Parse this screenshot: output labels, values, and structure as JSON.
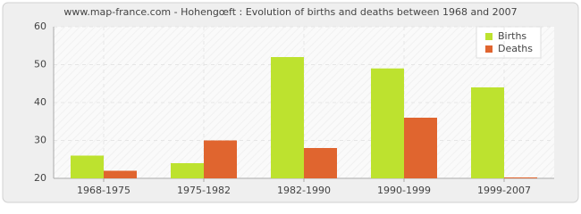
{
  "chart_data": {
    "type": "bar",
    "title": "www.map-france.com - Hohengœft : Evolution of births and deaths between 1968 and 2007",
    "categories": [
      "1968-1975",
      "1975-1982",
      "1982-1990",
      "1990-1999",
      "1999-2007"
    ],
    "series": [
      {
        "name": "Births",
        "color": "#bde22f",
        "values": [
          26,
          24,
          52,
          49,
          44
        ]
      },
      {
        "name": "Deaths",
        "color": "#e0652f",
        "values": [
          22,
          30,
          28,
          36,
          20
        ]
      }
    ],
    "ylim": [
      20,
      60
    ],
    "yticks": [
      20,
      30,
      40,
      50,
      60
    ],
    "grid": true,
    "legend": "top-right"
  }
}
